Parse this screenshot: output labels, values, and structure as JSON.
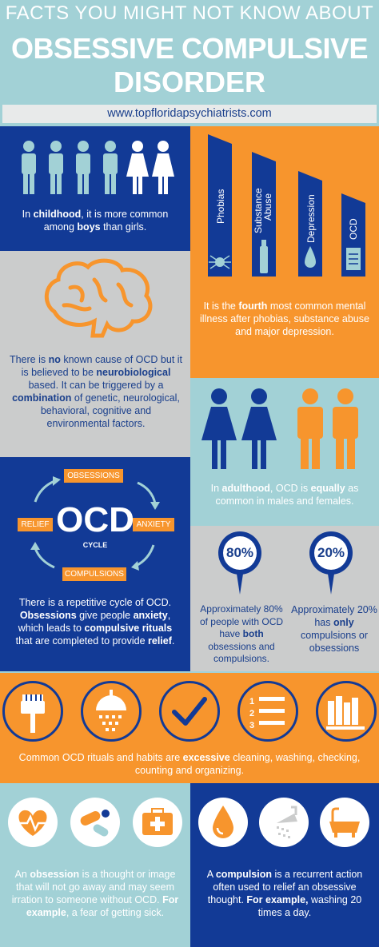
{
  "header": {
    "line1": "FACTS YOU MIGHT NOT KNOW ABOUT",
    "line2": "OBSESSIVE COMPULSIVE",
    "line3": "DISORDER",
    "url": "www.topfloridapsychiatrists.com"
  },
  "childhood": {
    "pre": "In ",
    "bold1": "childhood",
    "mid": ", it is more common among ",
    "bold2": "boys",
    "post": " than girls."
  },
  "ranking": {
    "bars": [
      "Phobias",
      "Substance Abuse",
      "Depression",
      "OCD"
    ],
    "pre": "It is the ",
    "bold": "fourth",
    "post": " most common mental illness after phobias, substance abuse and major depression."
  },
  "cause": {
    "p1": "There is ",
    "b1": "no",
    "p2": " known cause of OCD but it is believed to be ",
    "b2": "neurobiological",
    "p3": " based. It can be triggered by a ",
    "b3": "combination",
    "p4": " of genetic, neurological, behavioral, cognitive and environmental factors."
  },
  "adulthood": {
    "pre": "In ",
    "bold1": "adulthood",
    "mid": ", OCD is ",
    "bold2": "equally",
    "post": " as common in males and females."
  },
  "cycle": {
    "center": "OCD",
    "sub": "CYCLE",
    "steps": [
      "OBSESSIONS",
      "ANXIETY",
      "COMPULSIONS",
      "RELIEF"
    ],
    "p1": "There is a repetitive cycle of OCD. ",
    "b1": "Obsessions",
    "p2": " give people ",
    "b2": "anxiety",
    "p3": ", which leads to ",
    "b3": "compulsive rituals",
    "p4": " that are completed to provide ",
    "b4": "relief",
    "p5": "."
  },
  "stats": {
    "left_pct": "80%",
    "left_p1": "Approximately 80% of people with OCD have ",
    "left_b": "both",
    "left_p2": " obsessions and compulsions.",
    "right_pct": "20%",
    "right_p1": "Approximately 20% has ",
    "right_b": "only",
    "right_p2": " compulsions or obsessions"
  },
  "rituals": {
    "icons": [
      "brush-icon",
      "shower-icon",
      "checkmark-icon",
      "list-icon",
      "books-icon"
    ],
    "pre": "Common OCD rituals and habits are ",
    "bold": "excessive",
    "post": " cleaning, washing, checking, counting and organizing."
  },
  "obsession": {
    "p1": "An ",
    "b1": "obsession",
    "p2": " is a thought or image that will not go away and may seem irration to someone without OCD. ",
    "b2": "For example",
    "p3": ", a fear of getting sick."
  },
  "compulsion": {
    "p1": "A ",
    "b1": "compulsion",
    "p2": " is a recurrent action often used to relief an obsessive thought. ",
    "b2": "For example,",
    "p3": " washing 20 times a day."
  },
  "colors": {
    "navy": "#123a96",
    "orange": "#f7952d",
    "teal": "#a2d1d6",
    "gray": "#cbcccc"
  }
}
